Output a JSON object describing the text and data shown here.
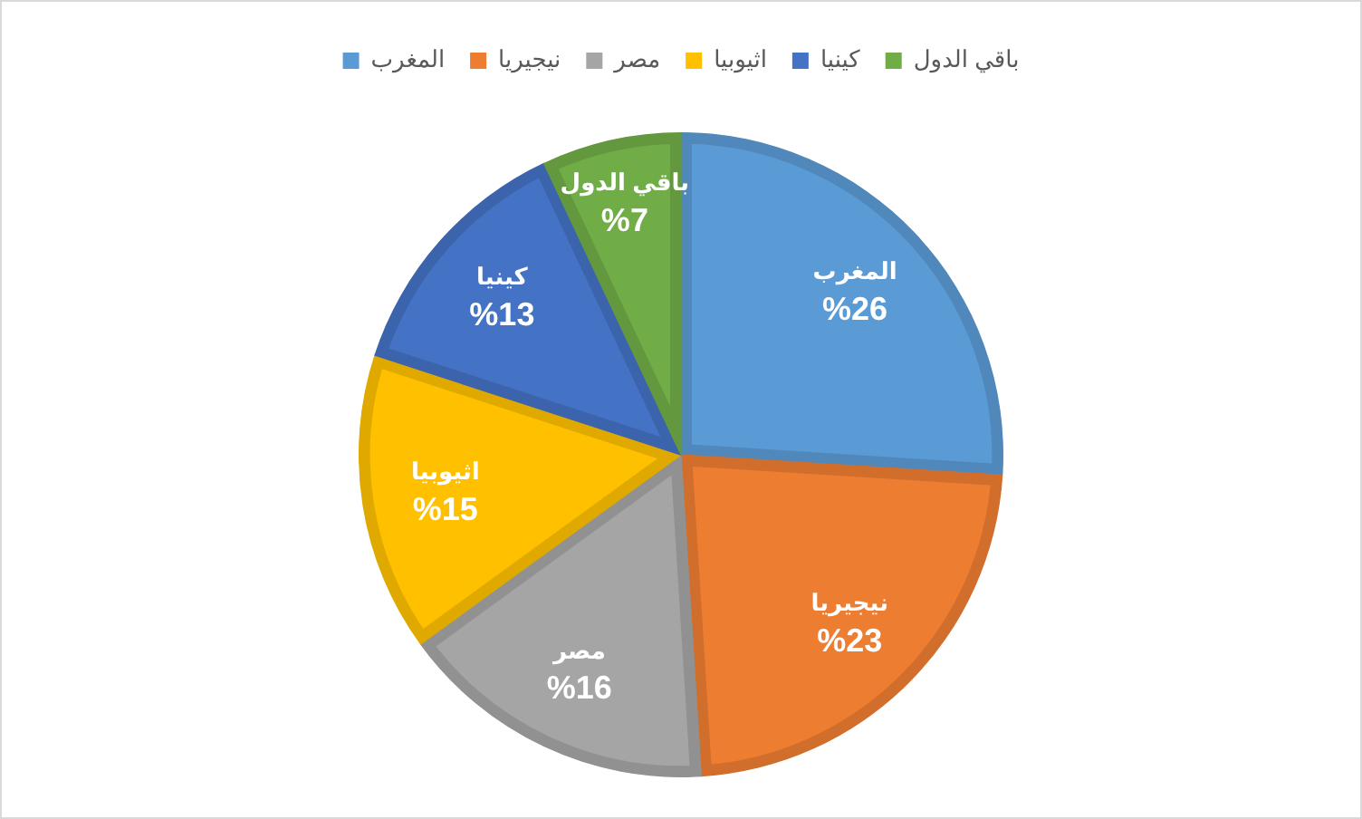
{
  "chart_data": {
    "type": "pie",
    "categories": [
      "المغرب",
      "نيجيريا",
      "مصر",
      "اثيوبيا",
      "كينيا",
      "باقي الدول"
    ],
    "values": [
      26,
      23,
      16,
      15,
      13,
      7
    ],
    "colors": [
      "#5b9bd5",
      "#ed7d31",
      "#a5a5a5",
      "#ffc000",
      "#4472c4",
      "#70ad47"
    ],
    "value_labels": [
      "%26",
      "%23",
      "%16",
      "%15",
      "%13",
      "%7"
    ],
    "legend": "top"
  }
}
